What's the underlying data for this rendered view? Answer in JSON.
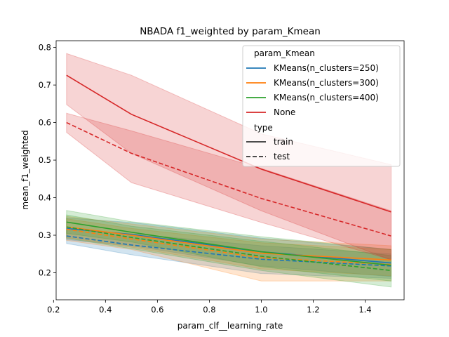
{
  "chart_data": {
    "type": "line",
    "title": "NBADA f1_weighted by param_Kmean",
    "xlabel": "param_clf__learning_rate",
    "ylabel": "mean_f1_weighted",
    "xlim": [
      0.21,
      1.55
    ],
    "ylim": [
      0.128,
      0.818
    ],
    "x_ticks": [
      "0.2",
      "0.4",
      "0.6",
      "0.8",
      "1.0",
      "1.2",
      "1.4"
    ],
    "y_ticks": [
      "0.2",
      "0.3",
      "0.4",
      "0.5",
      "0.6",
      "0.7",
      "0.8"
    ],
    "grid": false,
    "legend_position": "top-right",
    "legend_title": "param_Kmean",
    "style_title": "type",
    "x": [
      0.25,
      0.5,
      1.0,
      1.5
    ],
    "series": [
      {
        "name": "KMeans(n_clusters=250)",
        "color": "#1f77b4",
        "type": "train",
        "values": [
          0.318,
          0.302,
          0.256,
          0.226
        ],
        "lower": [
          0.288,
          0.272,
          0.218,
          0.19
        ],
        "upper": [
          0.346,
          0.334,
          0.292,
          0.262
        ]
      },
      {
        "name": "KMeans(n_clusters=250)",
        "color": "#1f77b4",
        "type": "test",
        "values": [
          0.298,
          0.274,
          0.236,
          0.218
        ],
        "lower": [
          0.278,
          0.248,
          0.198,
          0.185
        ],
        "upper": [
          0.316,
          0.304,
          0.272,
          0.25
        ]
      },
      {
        "name": "KMeans(n_clusters=300)",
        "color": "#ff7f0e",
        "type": "train",
        "values": [
          0.322,
          0.3,
          0.252,
          0.234
        ],
        "lower": [
          0.294,
          0.268,
          0.21,
          0.192
        ],
        "upper": [
          0.35,
          0.33,
          0.29,
          0.272
        ]
      },
      {
        "name": "KMeans(n_clusters=300)",
        "color": "#ff7f0e",
        "type": "test",
        "values": [
          0.316,
          0.29,
          0.24,
          0.222
        ],
        "lower": [
          0.286,
          0.262,
          0.178,
          0.178
        ],
        "upper": [
          0.344,
          0.318,
          0.28,
          0.262
        ]
      },
      {
        "name": "KMeans(n_clusters=400)",
        "color": "#2ca02c",
        "type": "train",
        "values": [
          0.335,
          0.308,
          0.256,
          0.22
        ],
        "lower": [
          0.305,
          0.282,
          0.216,
          0.178
        ],
        "upper": [
          0.366,
          0.336,
          0.296,
          0.262
        ]
      },
      {
        "name": "KMeans(n_clusters=400)",
        "color": "#2ca02c",
        "type": "test",
        "values": [
          0.322,
          0.294,
          0.244,
          0.206
        ],
        "lower": [
          0.292,
          0.264,
          0.206,
          0.162
        ],
        "upper": [
          0.354,
          0.324,
          0.284,
          0.246
        ]
      },
      {
        "name": "None",
        "color": "#d62728",
        "type": "train",
        "values": [
          0.726,
          0.622,
          0.476,
          0.362
        ],
        "lower": [
          0.648,
          0.518,
          0.365,
          0.234
        ],
        "upper": [
          0.784,
          0.726,
          0.57,
          0.488
        ]
      },
      {
        "name": "None",
        "color": "#d62728",
        "type": "test",
        "values": [
          0.6,
          0.518,
          0.398,
          0.298
        ],
        "lower": [
          0.574,
          0.44,
          0.334,
          0.235
        ],
        "upper": [
          0.625,
          0.578,
          0.478,
          0.365
        ]
      }
    ],
    "legend": {
      "hue_entries": [
        {
          "label": "KMeans(n_clusters=250)",
          "color": "#1f77b4"
        },
        {
          "label": "KMeans(n_clusters=300)",
          "color": "#ff7f0e"
        },
        {
          "label": "KMeans(n_clusters=400)",
          "color": "#2ca02c"
        },
        {
          "label": "None",
          "color": "#d62728"
        }
      ],
      "style_entries": [
        {
          "label": "train",
          "dash": "solid"
        },
        {
          "label": "test",
          "dash": "dashed"
        }
      ]
    }
  }
}
